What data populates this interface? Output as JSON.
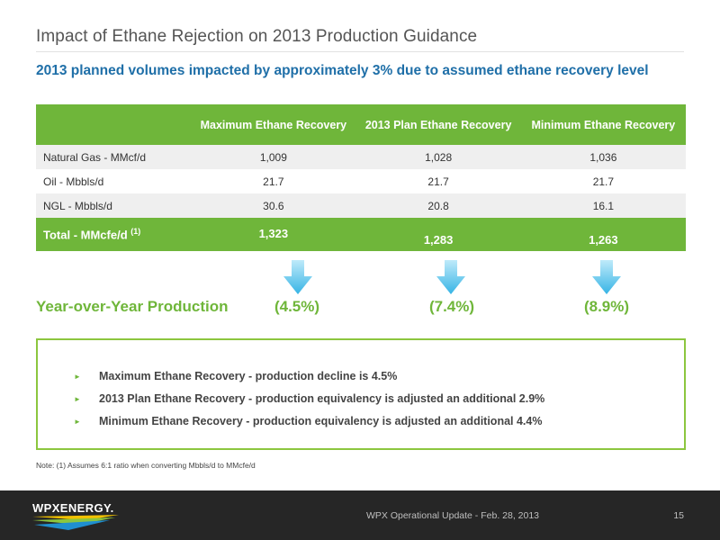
{
  "title": "Impact of Ethane Rejection on 2013 Production Guidance",
  "subtitle": "2013 planned volumes impacted by approximately 3% due to assumed ethane recovery level",
  "table": {
    "headers": [
      "",
      "Maximum Ethane Recovery",
      "2013 Plan Ethane Recovery",
      "Minimum Ethane Recovery"
    ],
    "rows": [
      {
        "label": "Natural Gas - MMcf/d",
        "values": [
          "1,009",
          "1,028",
          "1,036"
        ]
      },
      {
        "label": "Oil - Mbbls/d",
        "values": [
          "21.7",
          "21.7",
          "21.7"
        ]
      },
      {
        "label": "NGL - Mbbls/d",
        "values": [
          "30.6",
          "20.8",
          "16.1"
        ]
      }
    ],
    "total": {
      "label": "Total - MMcfe/d",
      "footnote_ref": "(1)",
      "values": [
        "1,323",
        "1,283",
        "1,263"
      ]
    }
  },
  "yoy": {
    "label": "Year-over-Year Production",
    "values": [
      "(4.5%)",
      "(7.4%)",
      "(8.9%)"
    ]
  },
  "bullets": [
    "Maximum Ethane Recovery - production decline is 4.5%",
    "2013 Plan Ethane Recovery - production equivalency is adjusted an additional 2.9%",
    "Minimum Ethane Recovery -  production equivalency is adjusted an additional 4.4%"
  ],
  "note": "Note:  (1) Assumes 6:1 ratio when converting Mbbls/d to MMcfe/d",
  "footer": {
    "logo_text": "WPXENERGY.",
    "text": "WPX Operational Update - Feb. 28, 2013",
    "page": "15"
  },
  "colors": {
    "accent_green": "#6fb63a",
    "subtitle_blue": "#1f6fa8",
    "arrow_blue": "#4fc3ea",
    "footer_bg": "#262626"
  },
  "icons": [
    "down-arrow-icon",
    "bullet-triangle-icon"
  ]
}
